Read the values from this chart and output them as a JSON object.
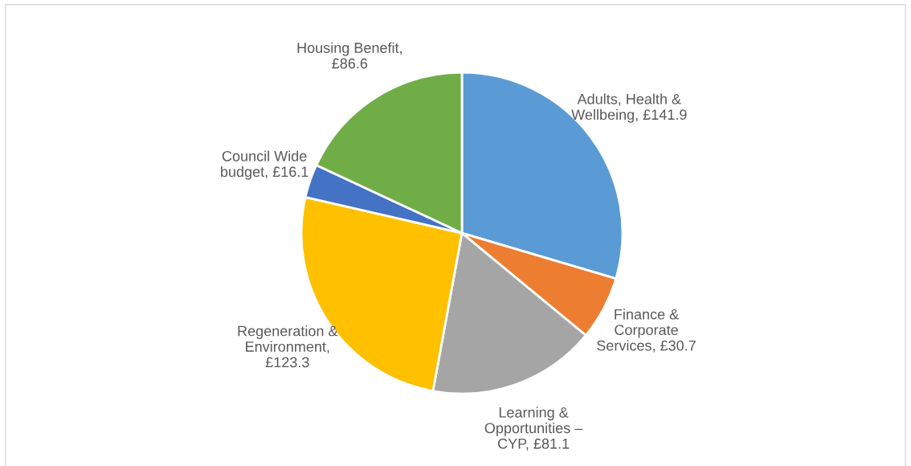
{
  "chart_data": {
    "type": "pie",
    "categories": [
      "Adults, Health &\nWellbeing, £141.9",
      "Finance &\nCorporate\nServices, £30.7",
      "Learning &\nOpportunities –\nCYP, £81.1",
      "Regeneration &\nEnvironment,\n£123.3",
      "Council Wide\nbudget, £16.1",
      "Housing Benefit,\n£86.6"
    ],
    "values": [
      141.9,
      30.7,
      81.1,
      123.3,
      16.1,
      86.6
    ],
    "colors": [
      "#5b9bd5",
      "#ed7d31",
      "#a5a5a5",
      "#ffc000",
      "#4472c4",
      "#70ad47"
    ]
  }
}
